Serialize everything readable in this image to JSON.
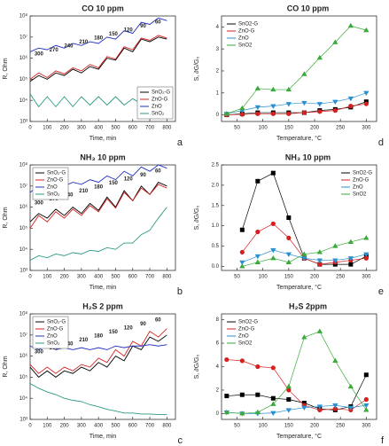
{
  "chart_data": [
    {
      "type": "line",
      "panel": "a",
      "title": "CO 10 ppm",
      "xlabel": "Time, min",
      "ylabel": "R, Ohm",
      "log_y": true,
      "legend": "lower right",
      "annotations": [
        "300",
        "270",
        "240",
        "210",
        "180",
        "150",
        "120",
        "90",
        "60"
      ],
      "x": [
        0,
        50,
        100,
        150,
        200,
        250,
        300,
        350,
        400,
        450,
        500,
        550,
        600,
        650,
        700,
        750,
        800
      ],
      "xlim": [
        0,
        850
      ],
      "xticks": [
        0,
        100,
        200,
        300,
        400,
        500,
        600,
        700,
        800
      ],
      "ylim": [
        1000,
        100000000
      ],
      "yticks": [
        {
          "value": 1000,
          "label": "10³"
        },
        {
          "value": 10000,
          "label": "10⁴"
        },
        {
          "value": 100000,
          "label": "10⁵"
        },
        {
          "value": 1000000,
          "label": "10⁶"
        },
        {
          "value": 10000000,
          "label": "10⁷"
        },
        {
          "value": 100000000,
          "label": "10⁸"
        }
      ],
      "series": [
        {
          "name": "SnO₂-G",
          "color": "#000000",
          "values": [
            80000,
            150000,
            100000,
            200000,
            150000,
            300000,
            200000,
            400000,
            300000,
            1000000,
            800000,
            3000000,
            2000000,
            8000000,
            6000000,
            10000000,
            8000000
          ]
        },
        {
          "name": "ZnO-G",
          "color": "#d62020",
          "values": [
            100000,
            200000,
            120000,
            250000,
            180000,
            350000,
            250000,
            500000,
            350000,
            1200000,
            900000,
            3500000,
            2500000,
            9000000,
            7000000,
            12000000,
            9000000
          ]
        },
        {
          "name": "ZnO",
          "color": "#2030c0",
          "values": [
            2000000,
            3000000,
            2500000,
            4000000,
            3000000,
            5000000,
            4000000,
            6000000,
            5000000,
            10000000,
            8000000,
            20000000,
            15000000,
            50000000,
            40000000,
            80000000,
            60000000
          ]
        },
        {
          "name": "SnO₂",
          "color": "#2a9a84",
          "values": [
            20000,
            5000,
            15000,
            5000,
            15000,
            5000,
            15000,
            6000,
            15000,
            6000,
            15000,
            6000,
            12000,
            7000,
            12000,
            8000,
            10000
          ]
        }
      ]
    },
    {
      "type": "line",
      "panel": "b",
      "title": "NH₃ 10 ppm",
      "xlabel": "Time, min",
      "ylabel": "R, Ohm",
      "log_y": true,
      "legend": "upper left",
      "annotations": [
        "300",
        "270",
        "240",
        "210",
        "180",
        "150",
        "120",
        "90",
        "60"
      ],
      "x": [
        0,
        50,
        100,
        150,
        200,
        250,
        300,
        350,
        400,
        450,
        500,
        550,
        600,
        650,
        700,
        750,
        800
      ],
      "xlim": [
        0,
        850
      ],
      "xticks": [
        0,
        100,
        200,
        300,
        400,
        500,
        600,
        700,
        800
      ],
      "ylim": [
        1000,
        100000000
      ],
      "yticks": [
        {
          "value": 1000,
          "label": "10³"
        },
        {
          "value": 10000,
          "label": "10⁴"
        },
        {
          "value": 100000,
          "label": "10⁵"
        },
        {
          "value": 1000000,
          "label": "10⁶"
        },
        {
          "value": 10000000,
          "label": "10⁷"
        },
        {
          "value": 100000000,
          "label": "10⁸"
        }
      ],
      "series": [
        {
          "name": "SnO₂-G",
          "color": "#000000",
          "values": [
            200000,
            500000,
            300000,
            800000,
            400000,
            1000000,
            500000,
            1500000,
            700000,
            3000000,
            1000000,
            6000000,
            2000000,
            10000000,
            4000000,
            15000000,
            10000000
          ]
        },
        {
          "name": "ZnO-G",
          "color": "#d62020",
          "values": [
            100000,
            400000,
            200000,
            600000,
            300000,
            800000,
            400000,
            1200000,
            600000,
            2500000,
            900000,
            5000000,
            2000000,
            8000000,
            4000000,
            12000000,
            8000000
          ]
        },
        {
          "name": "ZnO",
          "color": "#2030c0",
          "values": [
            5000000,
            10000000,
            8000000,
            12000000,
            10000000,
            15000000,
            12000000,
            20000000,
            15000000,
            30000000,
            20000000,
            50000000,
            30000000,
            80000000,
            50000000,
            100000000,
            70000000
          ]
        },
        {
          "name": "SnO₂",
          "color": "#2a9a84",
          "values": [
            3000,
            5000,
            4000,
            6000,
            5000,
            7000,
            6000,
            9000,
            8000,
            12000,
            10000,
            20000,
            20000,
            50000,
            80000,
            300000,
            1000000
          ]
        }
      ]
    },
    {
      "type": "line",
      "panel": "c",
      "title": "H₂S 2 ppm",
      "xlabel": "Time, min",
      "ylabel": "R, Ohm",
      "log_y": true,
      "legend": "upper left",
      "annotations": [
        "300",
        "270",
        "240",
        "210",
        "180",
        "150",
        "120",
        "90",
        "60"
      ],
      "x": [
        0,
        50,
        100,
        150,
        200,
        250,
        300,
        350,
        400,
        450,
        500,
        550,
        600,
        650,
        700,
        750,
        800
      ],
      "xlim": [
        0,
        850
      ],
      "xticks": [
        0,
        100,
        200,
        300,
        400,
        500,
        600,
        700,
        800
      ],
      "ylim": [
        1000,
        100000000
      ],
      "yticks": [
        {
          "value": 1000,
          "label": "10³"
        },
        {
          "value": 10000,
          "label": "10⁴"
        },
        {
          "value": 100000,
          "label": "10⁵"
        },
        {
          "value": 1000000,
          "label": "10⁶"
        },
        {
          "value": 10000000,
          "label": "10⁷"
        },
        {
          "value": 100000000,
          "label": "10⁸"
        }
      ],
      "series": [
        {
          "name": "SnO₂-G",
          "color": "#000000",
          "values": [
            300000,
            100000,
            200000,
            100000,
            200000,
            150000,
            300000,
            200000,
            500000,
            300000,
            1000000,
            600000,
            3000000,
            2000000,
            8000000,
            5000000,
            10000000
          ]
        },
        {
          "name": "ZnO-G",
          "color": "#d62020",
          "values": [
            400000,
            150000,
            300000,
            150000,
            300000,
            200000,
            400000,
            300000,
            800000,
            500000,
            2000000,
            1000000,
            5000000,
            3000000,
            15000000,
            8000000,
            20000000
          ]
        },
        {
          "name": "ZnO",
          "color": "#2030c0",
          "values": [
            3000000,
            2000000,
            3000000,
            2000000,
            2500000,
            2000000,
            2500000,
            2000000,
            2500000,
            2000000,
            3000000,
            2500000,
            3000000,
            3000000,
            3500000,
            3000000,
            3500000
          ]
        },
        {
          "name": "SnO₂",
          "color": "#2a9a84",
          "values": [
            50000,
            30000,
            20000,
            15000,
            10000,
            8000,
            7000,
            5000,
            4000,
            3000,
            2500,
            2000,
            2000,
            1800,
            1800,
            1700,
            1700
          ]
        }
      ]
    },
    {
      "type": "scatter-line",
      "panel": "d",
      "title": "CO 10 ppm",
      "xlabel": "Temperature, °C",
      "ylabel": "S, ∂G/G₀",
      "legend": "upper left",
      "x": [
        30,
        60,
        90,
        120,
        150,
        180,
        210,
        240,
        270,
        300
      ],
      "xlim": [
        20,
        320
      ],
      "xticks": [
        50,
        100,
        150,
        200,
        250,
        300
      ],
      "ylim": [
        -0.3,
        4.5
      ],
      "yticks": [
        0,
        1,
        2,
        3,
        4
      ],
      "series": [
        {
          "name": "SnO2-G",
          "color": "#000000",
          "marker": "square",
          "values": [
            0,
            0.05,
            0.1,
            0.1,
            0.1,
            0.1,
            0.2,
            0.25,
            0.35,
            0.6
          ]
        },
        {
          "name": "ZnO-G",
          "color": "#d62020",
          "marker": "circle",
          "values": [
            0,
            0.02,
            0.05,
            0.05,
            0.05,
            0.1,
            0.15,
            0.2,
            0.4,
            0.5
          ]
        },
        {
          "name": "ZnO",
          "color": "#2a90d0",
          "marker": "triangle-down",
          "values": [
            0.05,
            0.2,
            0.35,
            0.4,
            0.5,
            0.55,
            0.5,
            0.6,
            0.75,
            1.0
          ]
        },
        {
          "name": "SnO2",
          "color": "#3aaa3a",
          "marker": "triangle-up",
          "values": [
            0.05,
            0.3,
            1.2,
            1.15,
            1.15,
            1.85,
            2.6,
            3.3,
            4.05,
            3.85
          ]
        }
      ]
    },
    {
      "type": "scatter-line",
      "panel": "e",
      "title": "NH₃ 10 ppm",
      "xlabel": "Temperature, °C",
      "ylabel": "S, ∂G/G₀",
      "legend": "upper right",
      "x": [
        60,
        90,
        120,
        150,
        180,
        210,
        240,
        270,
        300
      ],
      "xlim": [
        20,
        320
      ],
      "xticks": [
        50,
        100,
        150,
        200,
        250,
        300
      ],
      "ylim": [
        -0.1,
        2.5
      ],
      "yticks": [
        {
          "value": 0,
          "label": "0.0"
        },
        {
          "value": 0.5,
          "label": "0.5"
        },
        {
          "value": 1,
          "label": "1.0"
        },
        {
          "value": 1.5,
          "label": "1.5"
        },
        {
          "value": 2,
          "label": "2.0"
        },
        {
          "value": 2.5,
          "label": "2.5"
        }
      ],
      "series": [
        {
          "name": "SnO2-G",
          "color": "#000000",
          "marker": "square",
          "values": [
            0.9,
            2.1,
            2.3,
            1.2,
            0.2,
            0.05,
            0.05,
            0.05,
            0.25
          ]
        },
        {
          "name": "ZnO-G",
          "color": "#d62020",
          "marker": "circle",
          "values": [
            0.35,
            0.85,
            1.05,
            0.7,
            0.2,
            0.05,
            0.1,
            0.15,
            0.2
          ]
        },
        {
          "name": "ZnO",
          "color": "#2a90d0",
          "marker": "triangle-down",
          "values": [
            0.1,
            0.25,
            0.4,
            0.3,
            0.2,
            0.15,
            0.15,
            0.2,
            0.3
          ]
        },
        {
          "name": "SnO2",
          "color": "#3aaa3a",
          "marker": "triangle-up",
          "values": [
            0,
            0.1,
            0.2,
            0.1,
            0.3,
            0.35,
            0.5,
            0.6,
            0.7
          ]
        }
      ]
    },
    {
      "type": "scatter-line",
      "panel": "f",
      "title": "H₂S 2ppm",
      "xlabel": "Temperature, °C",
      "ylabel": "S, ∂G/G₀",
      "legend": "upper left",
      "x": [
        30,
        60,
        90,
        120,
        150,
        180,
        210,
        240,
        270,
        300
      ],
      "xlim": [
        20,
        320
      ],
      "xticks": [
        50,
        100,
        150,
        200,
        250,
        300
      ],
      "ylim": [
        -0.5,
        8.5
      ],
      "yticks": [
        0,
        2,
        4,
        6,
        8
      ],
      "series": [
        {
          "name": "SnO2-G",
          "color": "#000000",
          "marker": "square",
          "values": [
            1.5,
            1.6,
            1.6,
            1.3,
            1.2,
            0.9,
            0.4,
            0.3,
            0.6,
            3.3
          ]
        },
        {
          "name": "ZnO-G",
          "color": "#d62020",
          "marker": "circle",
          "values": [
            4.6,
            4.5,
            4.0,
            3.9,
            2.0,
            0.7,
            0.3,
            0.4,
            0.3,
            1.2
          ]
        },
        {
          "name": "ZnO",
          "color": "#2a90d0",
          "marker": "triangle-down",
          "values": [
            0.1,
            0,
            0,
            0.05,
            0.3,
            0.5,
            0.6,
            0.7,
            0.5,
            0.7
          ]
        },
        {
          "name": "SnO2",
          "color": "#3aaa3a",
          "marker": "triangle-up",
          "values": [
            0.1,
            0,
            0.1,
            0.8,
            2.3,
            6.5,
            7.0,
            4.5,
            2.3,
            0.3
          ]
        }
      ]
    }
  ]
}
